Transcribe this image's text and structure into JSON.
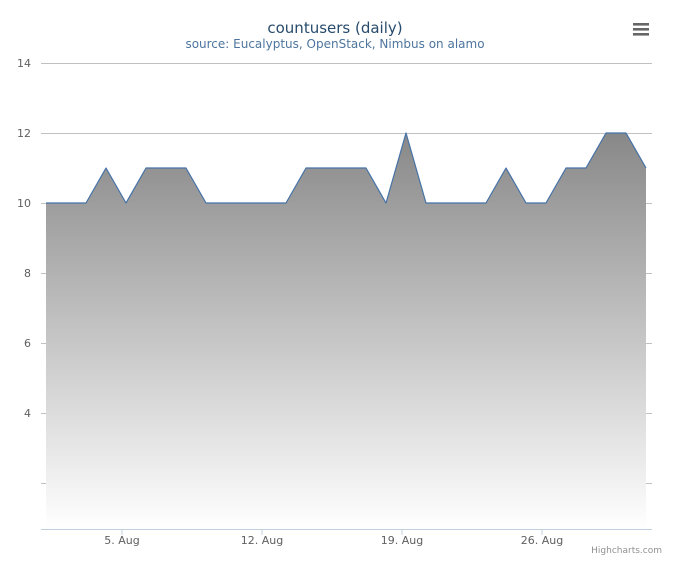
{
  "chart_data": {
    "type": "area",
    "title": "countusers (daily)",
    "subtitle": "source: Eucalyptus, OpenStack, Nimbus on alamo",
    "x_tick_labels": [
      "5. Aug",
      "12. Aug",
      "19. Aug",
      "26. Aug"
    ],
    "x_tick_days": [
      5,
      12,
      19,
      26
    ],
    "y_tick_labels": [
      "4",
      "6",
      "8",
      "10",
      "12",
      "14"
    ],
    "y_tick_values": [
      4,
      6,
      8,
      10,
      12,
      14
    ],
    "ylim": [
      0,
      14
    ],
    "grid": true,
    "legend": "none",
    "series": [
      {
        "x_days": [
          1,
          2,
          3,
          4,
          5,
          6,
          7,
          8,
          9,
          10,
          11,
          12,
          13,
          14,
          15,
          16,
          17,
          18,
          19,
          20,
          21,
          22,
          23,
          24,
          25,
          26,
          27,
          28,
          29,
          30,
          31
        ],
        "values": [
          10,
          10,
          10,
          11,
          10,
          11,
          11,
          11,
          10,
          10,
          10,
          10,
          10,
          11,
          11,
          11,
          11,
          10,
          12,
          10,
          10,
          10,
          10,
          11,
          10,
          10,
          11,
          11,
          12,
          12,
          11
        ]
      }
    ],
    "colors": {
      "line": "#4572a7",
      "fill_top": "#888888",
      "fill_bottom": "#ffffff"
    }
  },
  "credits": "Highcharts.com",
  "menu_icon": "hamburger-menu-icon"
}
